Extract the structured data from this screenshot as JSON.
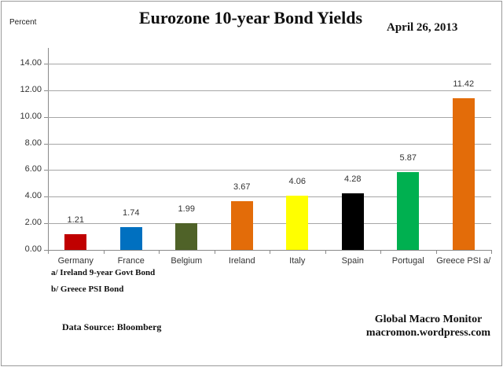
{
  "header": {
    "title": "Eurozone 10-year Bond Yields",
    "date": "April 26, 2013",
    "y_unit_label": "Percent"
  },
  "notes": {
    "a": "a/ Ireland 9-year Govt Bond",
    "b": "b/ Greece PSI Bond"
  },
  "footer": {
    "source": "Data Source:  Bloomberg",
    "brand_line1": "Global Macro Monitor",
    "brand_line2": "macromon.wordpress.com"
  },
  "chart_data": {
    "type": "bar",
    "title": "Eurozone 10-year Bond Yields",
    "subtitle": "April 26, 2013",
    "xlabel": "",
    "ylabel": "Percent",
    "ylim": [
      0,
      14
    ],
    "yticks": [
      "0.00",
      "2.00",
      "4.00",
      "6.00",
      "8.00",
      "10.00",
      "12.00",
      "14.00"
    ],
    "grid": true,
    "legend": "none",
    "categories": [
      "Germany",
      "France",
      "Belgium",
      "Ireland",
      "Italy",
      "Spain",
      "Portugal",
      "Greece PSI a/"
    ],
    "values": [
      1.21,
      1.74,
      1.99,
      3.67,
      4.06,
      4.28,
      5.87,
      11.42
    ],
    "value_labels": [
      "1.21",
      "1.74",
      "1.99",
      "3.67",
      "4.06",
      "4.28",
      "5.87",
      "11.42"
    ],
    "colors": [
      "#c00000",
      "#0070c0",
      "#4f6228",
      "#e36c09",
      "#ffff00",
      "#000000",
      "#00b050",
      "#e36c09"
    ],
    "annotations": [
      "a/ Ireland 9-year Govt Bond",
      "b/ Greece PSI Bond"
    ],
    "source": "Data Source:  Bloomberg"
  }
}
